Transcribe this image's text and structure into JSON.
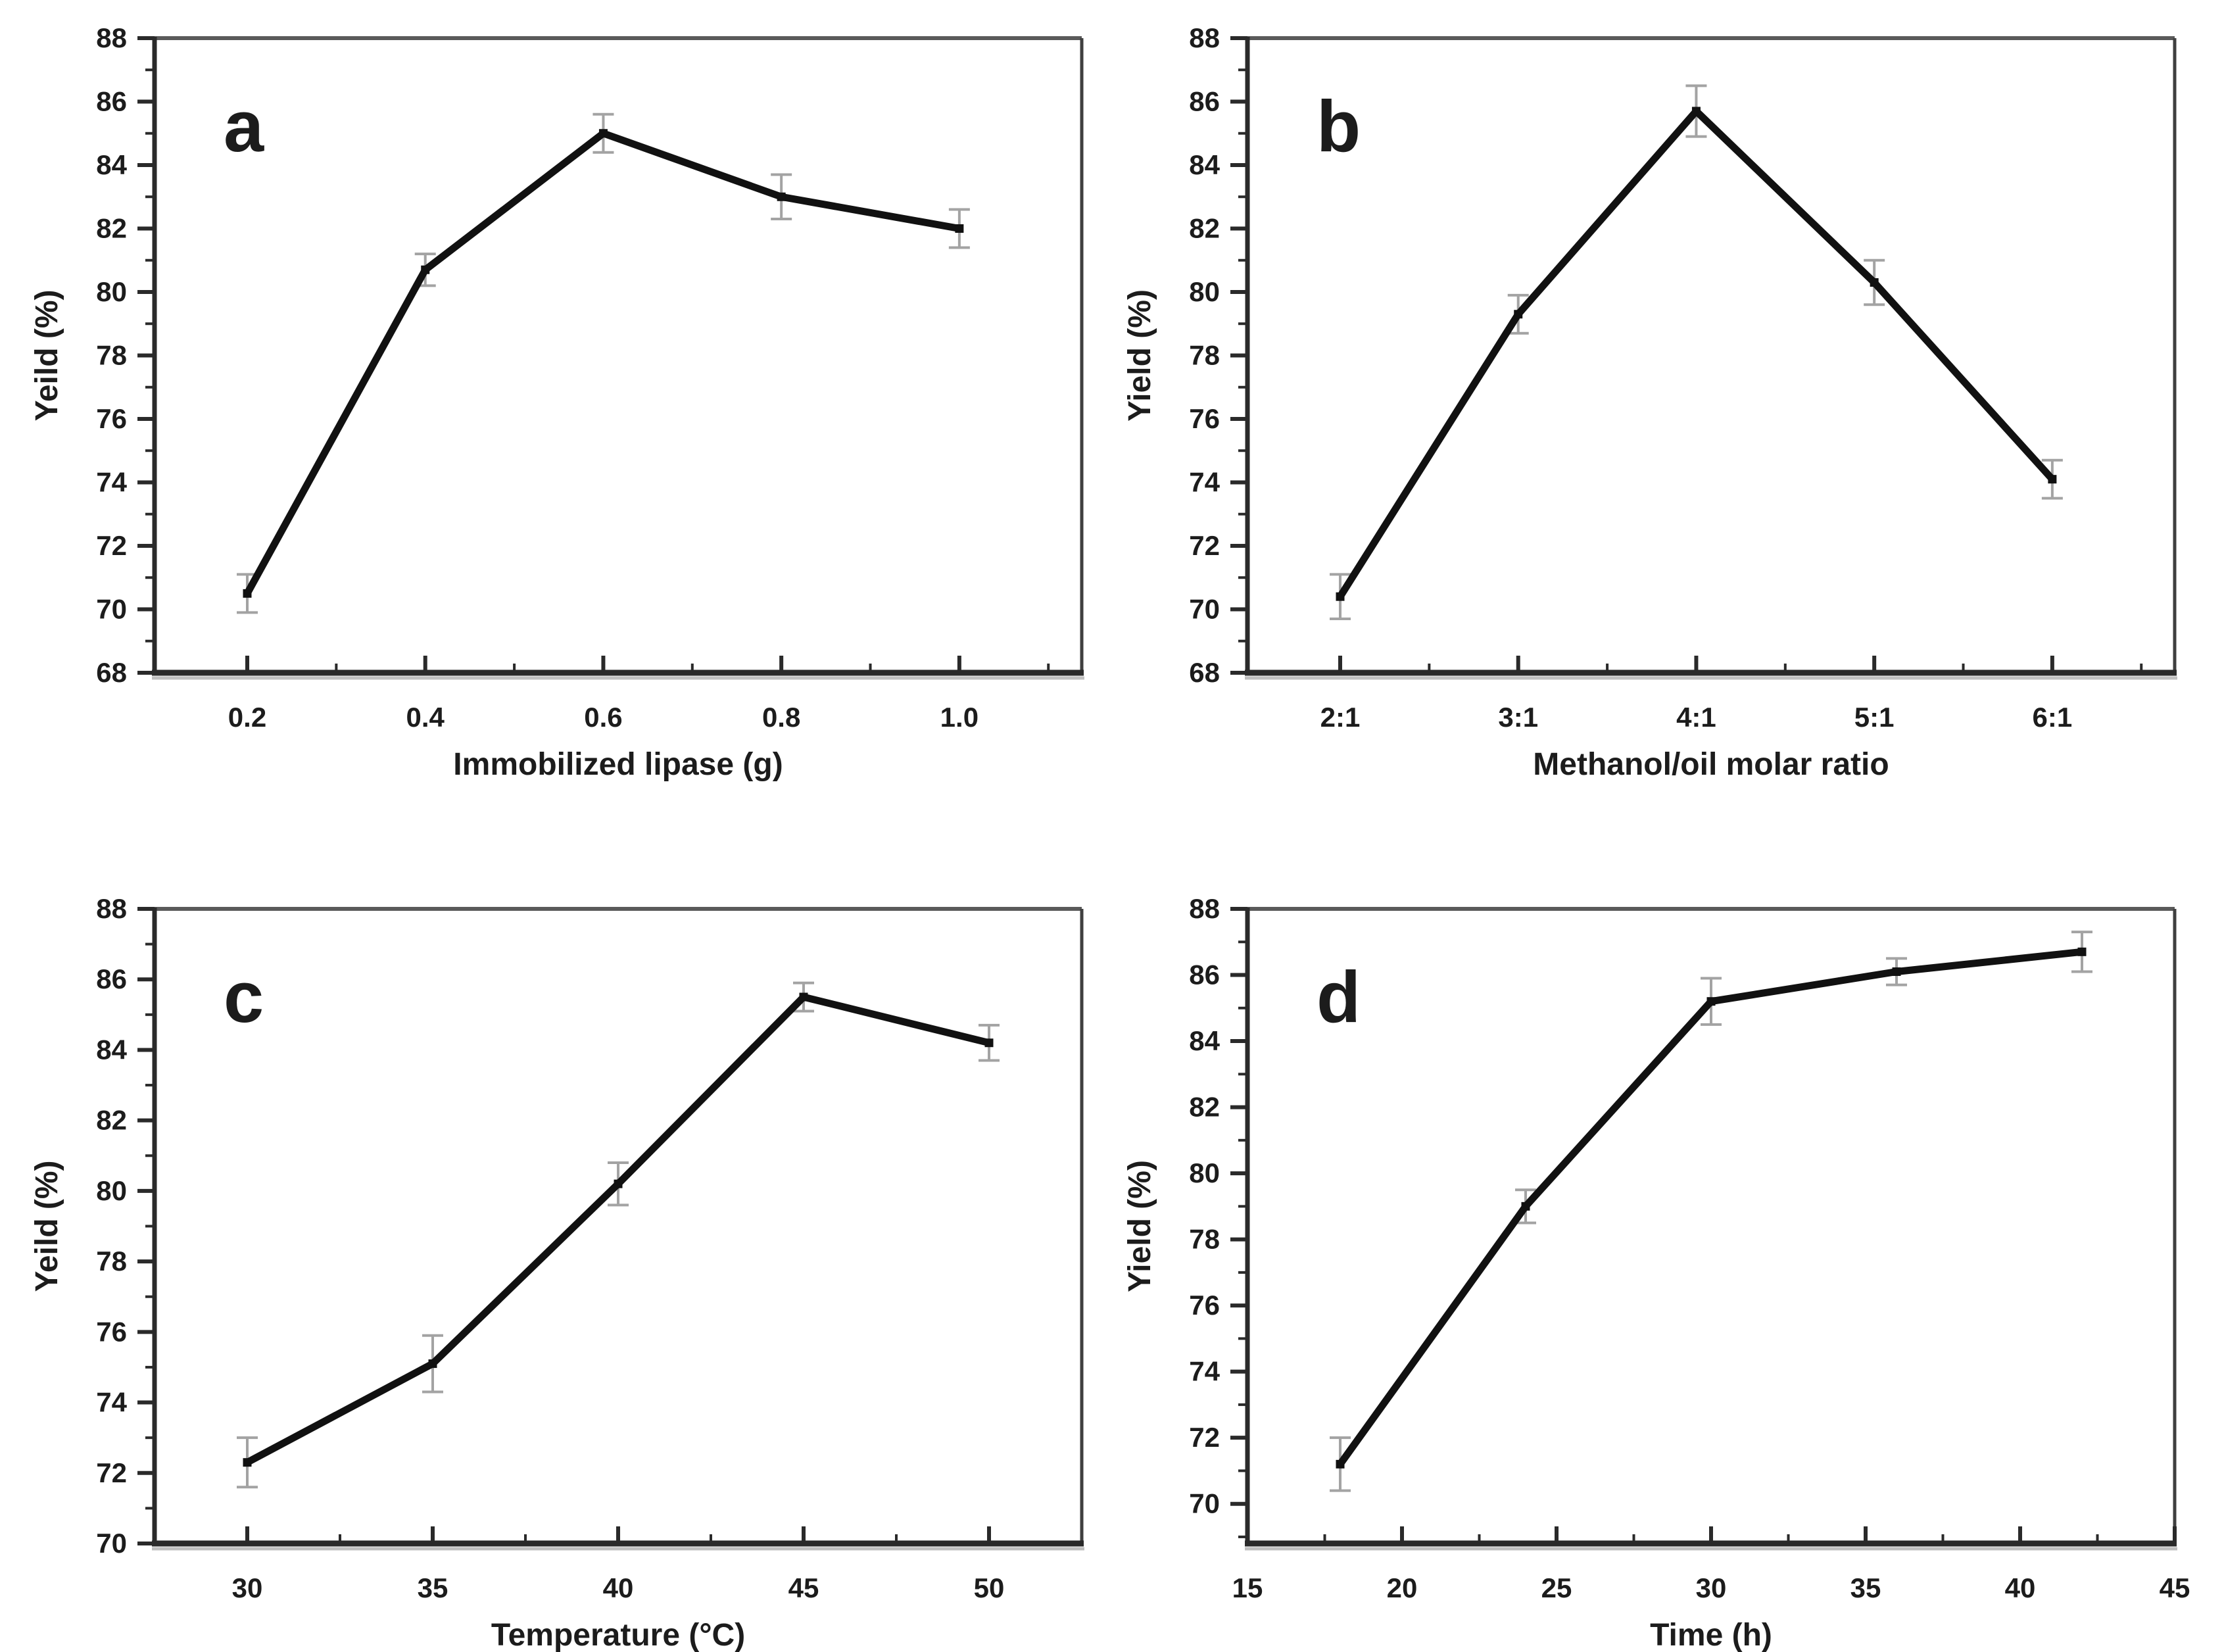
{
  "figure": {
    "background": "#ffffff",
    "colors": {
      "line": "#111111",
      "marker": "#111111",
      "error": "#a3a3a3",
      "axis": "#2a2a2a",
      "frame_top": "#5a5a5a",
      "frame_right": "#3f3f3f",
      "axis_shadow": "#c0c0c0",
      "text": "#1c1c1c"
    },
    "layout": {
      "rows": 2,
      "cols": 2,
      "grid": false,
      "legend": "none"
    }
  },
  "chart_data": [
    {
      "panel_label": "a",
      "type": "line",
      "title": "",
      "xlabel": "Immobilized lipase (g)",
      "ylabel": "Yeild (%)",
      "x_mode": "categorical",
      "categories": [
        "0.2",
        "0.4",
        "0.6",
        "0.8",
        "1.0"
      ],
      "values": [
        70.5,
        80.7,
        85.0,
        83.0,
        82.0
      ],
      "errors": [
        0.6,
        0.5,
        0.6,
        0.7,
        0.6
      ],
      "ylim": [
        68,
        88
      ],
      "yticks": [
        68,
        70,
        72,
        74,
        76,
        78,
        80,
        82,
        84,
        86,
        88
      ]
    },
    {
      "panel_label": "b",
      "type": "line",
      "title": "",
      "xlabel": "Methanol/oil molar ratio",
      "ylabel": "Yield (%)",
      "x_mode": "categorical",
      "categories": [
        "2:1",
        "3:1",
        "4:1",
        "5:1",
        "6:1"
      ],
      "values": [
        70.4,
        79.3,
        85.7,
        80.3,
        74.1
      ],
      "errors": [
        0.7,
        0.6,
        0.8,
        0.7,
        0.6
      ],
      "ylim": [
        68,
        88
      ],
      "yticks": [
        68,
        70,
        72,
        74,
        76,
        78,
        80,
        82,
        84,
        86,
        88
      ]
    },
    {
      "panel_label": "c",
      "type": "line",
      "title": "",
      "xlabel": "Temperature (°C)",
      "ylabel": "Yeild (%)",
      "x_mode": "numeric",
      "x": [
        30,
        35,
        40,
        45,
        50
      ],
      "xticks": [
        30,
        35,
        40,
        45,
        50
      ],
      "xlim": [
        27.5,
        52.5
      ],
      "values": [
        72.3,
        75.1,
        80.2,
        85.5,
        84.2
      ],
      "errors": [
        0.7,
        0.8,
        0.6,
        0.4,
        0.5
      ],
      "ylim": [
        70,
        88
      ],
      "yticks": [
        70,
        72,
        74,
        76,
        78,
        80,
        82,
        84,
        86,
        88
      ]
    },
    {
      "panel_label": "d",
      "type": "line",
      "title": "",
      "xlabel": "Time (h)",
      "ylabel": "Yield (%)",
      "x_mode": "numeric",
      "x": [
        18,
        24,
        30,
        36,
        42
      ],
      "xticks": [
        15,
        20,
        25,
        30,
        35,
        40,
        45
      ],
      "xlim": [
        15,
        45
      ],
      "values": [
        71.2,
        79.0,
        85.2,
        86.1,
        86.7
      ],
      "errors": [
        0.8,
        0.5,
        0.7,
        0.4,
        0.6
      ],
      "ylim": [
        68.8,
        88
      ],
      "yticks": [
        70,
        72,
        74,
        76,
        78,
        80,
        82,
        84,
        86,
        88
      ]
    }
  ]
}
